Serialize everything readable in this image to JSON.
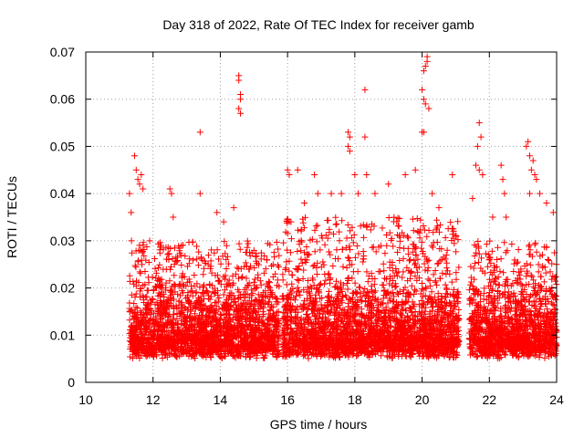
{
  "chart_data": {
    "type": "scatter",
    "title": "Day 318 of 2022, Rate Of TEC Index for receiver gamb",
    "xlabel": "GPS time / hours",
    "ylabel": "ROTI / TECUs",
    "xlim": [
      10,
      24
    ],
    "ylim": [
      0,
      0.07
    ],
    "x_ticks": [
      "10",
      "12",
      "14",
      "16",
      "18",
      "20",
      "22",
      "24"
    ],
    "y_ticks": [
      "0",
      "0.01",
      "0.02",
      "0.03",
      "0.04",
      "0.05",
      "0.06",
      "0.07"
    ],
    "grid": true,
    "marker": "plus",
    "color": "#ff0000",
    "series": [
      {
        "name": "ROTI",
        "segments": [
          {
            "x_start": 11.3,
            "x_end": 15.75,
            "y_min": 0.004,
            "y_base_max": 0.03
          },
          {
            "x_start": 15.85,
            "x_end": 21.1,
            "y_min": 0.004,
            "y_base_max": 0.035
          },
          {
            "x_start": 21.4,
            "x_end": 24.0,
            "y_min": 0.004,
            "y_base_max": 0.03
          }
        ],
        "points": [
          [
            11.3,
            0.04
          ],
          [
            11.35,
            0.036
          ],
          [
            11.45,
            0.048
          ],
          [
            11.5,
            0.045
          ],
          [
            11.55,
            0.043
          ],
          [
            11.6,
            0.042
          ],
          [
            11.65,
            0.044
          ],
          [
            11.7,
            0.041
          ],
          [
            11.9,
            0.03
          ],
          [
            12.5,
            0.041
          ],
          [
            12.55,
            0.04
          ],
          [
            12.6,
            0.035
          ],
          [
            13.4,
            0.053
          ],
          [
            13.4,
            0.04
          ],
          [
            13.9,
            0.036
          ],
          [
            14.1,
            0.034
          ],
          [
            14.4,
            0.037
          ],
          [
            14.55,
            0.065
          ],
          [
            14.55,
            0.064
          ],
          [
            14.6,
            0.061
          ],
          [
            14.6,
            0.06
          ],
          [
            14.55,
            0.058
          ],
          [
            14.6,
            0.057
          ],
          [
            16.0,
            0.045
          ],
          [
            16.05,
            0.044
          ],
          [
            16.3,
            0.045
          ],
          [
            16.5,
            0.038
          ],
          [
            16.8,
            0.044
          ],
          [
            16.9,
            0.04
          ],
          [
            17.3,
            0.04
          ],
          [
            17.6,
            0.04
          ],
          [
            17.8,
            0.053
          ],
          [
            17.85,
            0.052
          ],
          [
            17.8,
            0.05
          ],
          [
            17.85,
            0.049
          ],
          [
            18.0,
            0.044
          ],
          [
            18.1,
            0.04
          ],
          [
            18.3,
            0.062
          ],
          [
            18.3,
            0.052
          ],
          [
            18.35,
            0.044
          ],
          [
            18.6,
            0.04
          ],
          [
            19.0,
            0.042
          ],
          [
            19.5,
            0.044
          ],
          [
            19.8,
            0.045
          ],
          [
            20.0,
            0.053
          ],
          [
            20.05,
            0.053
          ],
          [
            20.0,
            0.062
          ],
          [
            20.05,
            0.06
          ],
          [
            20.1,
            0.059
          ],
          [
            20.05,
            0.066
          ],
          [
            20.1,
            0.067
          ],
          [
            20.15,
            0.068
          ],
          [
            20.15,
            0.069
          ],
          [
            20.2,
            0.058
          ],
          [
            20.3,
            0.04
          ],
          [
            20.5,
            0.037
          ],
          [
            20.9,
            0.044
          ],
          [
            21.5,
            0.039
          ],
          [
            21.6,
            0.046
          ],
          [
            21.65,
            0.05
          ],
          [
            21.7,
            0.055
          ],
          [
            21.75,
            0.052
          ],
          [
            21.7,
            0.045
          ],
          [
            21.8,
            0.044
          ],
          [
            22.1,
            0.035
          ],
          [
            22.35,
            0.046
          ],
          [
            22.4,
            0.043
          ],
          [
            22.45,
            0.04
          ],
          [
            22.5,
            0.035
          ],
          [
            23.1,
            0.05
          ],
          [
            23.15,
            0.051
          ],
          [
            23.2,
            0.048
          ],
          [
            23.25,
            0.045
          ],
          [
            23.3,
            0.047
          ],
          [
            23.35,
            0.044
          ],
          [
            23.4,
            0.043
          ],
          [
            23.2,
            0.04
          ],
          [
            23.5,
            0.04
          ],
          [
            23.7,
            0.038
          ],
          [
            23.9,
            0.036
          ],
          [
            24.0,
            0.025
          ]
        ]
      }
    ]
  }
}
